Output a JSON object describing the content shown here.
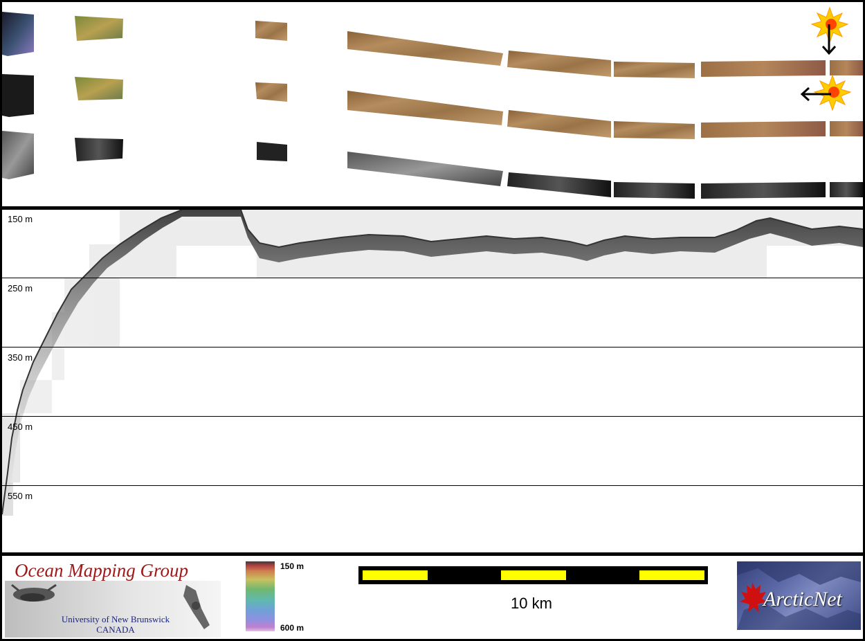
{
  "profile": {
    "depth_labels": [
      "150 m",
      "250 m",
      "350 m",
      "450 m",
      "550 m"
    ]
  },
  "footer": {
    "omg_title": "Ocean Mapping Group",
    "omg_university": "University of New Brunswick",
    "omg_country": "CANADA",
    "colorbar_top": "150 m",
    "colorbar_bottom": "600 m",
    "scale_label": "10 km",
    "arcticnet_text": "ArcticNet"
  },
  "icons": {
    "sun_top": "sun-icon",
    "arrow_down": "arrow-down-icon",
    "sun_bottom": "sun-icon",
    "arrow_left": "arrow-left-icon"
  },
  "colors": {
    "scale_yellow": "#ffff00",
    "omg_red": "#a01818",
    "omg_blue": "#1a237e"
  }
}
